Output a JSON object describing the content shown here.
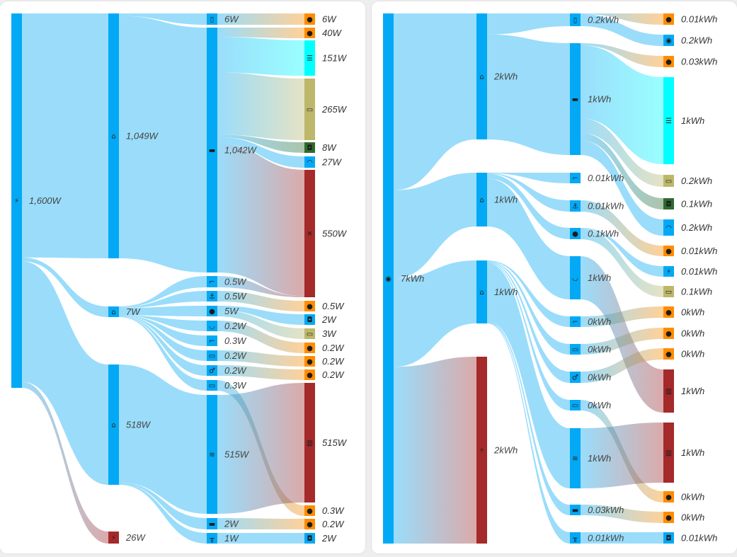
{
  "colors": {
    "blue": "#03a9f4",
    "cyan": "#00ffff",
    "khaki": "#bdb76b",
    "green": "#2e6b2e",
    "brown": "#a52a2a",
    "orange": "#ff8c00"
  },
  "panels": [
    {
      "name": "power-sankey",
      "nodes": [
        {
          "id": "power",
          "col": 0,
          "icon": "flash-icon",
          "color": "blue",
          "label": "1,600W"
        },
        {
          "id": "home1",
          "col": 1,
          "icon": "home-icon",
          "color": "blue",
          "label": "1,049W"
        },
        {
          "id": "home2",
          "col": 1,
          "icon": "home-icon",
          "color": "blue",
          "label": "7W"
        },
        {
          "id": "home3",
          "col": 1,
          "icon": "home-floor-icon",
          "color": "blue",
          "label": "518W"
        },
        {
          "id": "solar",
          "col": 1,
          "icon": "solar-power-icon",
          "color": "brown",
          "label": "26W"
        },
        {
          "id": "fridge",
          "col": 2,
          "icon": "fridge-icon",
          "color": "blue",
          "label": "6W"
        },
        {
          "id": "sofa",
          "col": 2,
          "icon": "sofa-icon",
          "color": "blue",
          "label": "1,042W"
        },
        {
          "id": "stairs1",
          "col": 2,
          "icon": "stairs-icon",
          "color": "blue",
          "label": "0.5W"
        },
        {
          "id": "anchor",
          "col": 2,
          "icon": "anchor-icon",
          "color": "blue",
          "label": "0.5W"
        },
        {
          "id": "palette",
          "col": 2,
          "icon": "palette-icon",
          "color": "blue",
          "label": "5W"
        },
        {
          "id": "bath",
          "col": 2,
          "icon": "bathtub-icon",
          "color": "blue",
          "label": "0.2W"
        },
        {
          "id": "stairs2",
          "col": 2,
          "icon": "stairs-icon",
          "color": "blue",
          "label": "0.3W"
        },
        {
          "id": "mon1",
          "col": 2,
          "icon": "monitor-icon",
          "color": "blue",
          "label": "0.2W"
        },
        {
          "id": "wc",
          "col": 2,
          "icon": "restroom-icon",
          "color": "blue",
          "label": "0.2W"
        },
        {
          "id": "mon2",
          "col": 2,
          "icon": "monitor-icon",
          "color": "blue",
          "label": "0.3W"
        },
        {
          "id": "shower",
          "col": 2,
          "icon": "shower-icon",
          "color": "blue",
          "label": "515W"
        },
        {
          "id": "bed",
          "col": 2,
          "icon": "bed-icon",
          "color": "blue",
          "label": "2W"
        },
        {
          "id": "desk",
          "col": 2,
          "icon": "desk-icon",
          "color": "blue",
          "label": "1W"
        },
        {
          "id": "b1",
          "col": 3,
          "icon": "lightbulb-icon",
          "color": "orange",
          "label": "6W"
        },
        {
          "id": "b2",
          "col": 3,
          "icon": "lightbulb-icon",
          "color": "orange",
          "label": "40W"
        },
        {
          "id": "server",
          "col": 3,
          "icon": "server-icon",
          "color": "cyan",
          "label": "151W"
        },
        {
          "id": "tv",
          "col": 3,
          "icon": "tv-icon",
          "color": "khaki",
          "label": "265W"
        },
        {
          "id": "spk1",
          "col": 3,
          "icon": "speaker-icon",
          "color": "green",
          "label": "8W"
        },
        {
          "id": "wifi",
          "col": 3,
          "icon": "wifi-icon",
          "color": "blue",
          "label": "27W"
        },
        {
          "id": "fan",
          "col": 3,
          "icon": "fan-icon",
          "color": "brown",
          "label": "550W"
        },
        {
          "id": "b3",
          "col": 3,
          "icon": "lightbulb-icon",
          "color": "orange",
          "label": "0.5W"
        },
        {
          "id": "spk2",
          "col": 3,
          "icon": "speaker-icon",
          "color": "blue",
          "label": "2W"
        },
        {
          "id": "laptop",
          "col": 3,
          "icon": "laptop-icon",
          "color": "khaki",
          "label": "3W"
        },
        {
          "id": "b4",
          "col": 3,
          "icon": "lightbulb-icon",
          "color": "orange",
          "label": "0.2W"
        },
        {
          "id": "b5",
          "col": 3,
          "icon": "lightbulb-icon",
          "color": "orange",
          "label": "0.2W"
        },
        {
          "id": "b6",
          "col": 3,
          "icon": "lightbulb-icon",
          "color": "orange",
          "label": "0.2W"
        },
        {
          "id": "heater",
          "col": 3,
          "icon": "radiator-icon",
          "color": "brown",
          "label": "515W"
        },
        {
          "id": "b7",
          "col": 3,
          "icon": "lightbulb-icon",
          "color": "orange",
          "label": "0.3W"
        },
        {
          "id": "b8",
          "col": 3,
          "icon": "lightbulb-icon",
          "color": "orange",
          "label": "0.2W"
        },
        {
          "id": "spk3",
          "col": 3,
          "icon": "speaker-icon",
          "color": "blue",
          "label": "2W"
        }
      ],
      "links": [
        [
          "power",
          "home1",
          1049
        ],
        [
          "power",
          "home2",
          7
        ],
        [
          "power",
          "home3",
          518
        ],
        [
          "power",
          "solar",
          26
        ],
        [
          "home1",
          "fridge",
          6
        ],
        [
          "home1",
          "sofa",
          1042
        ],
        [
          "home2",
          "stairs1",
          0.5
        ],
        [
          "home2",
          "anchor",
          0.5
        ],
        [
          "home2",
          "palette",
          5
        ],
        [
          "home2",
          "bath",
          0.2
        ],
        [
          "home2",
          "stairs2",
          0.3
        ],
        [
          "home2",
          "mon1",
          0.2
        ],
        [
          "home2",
          "wc",
          0.2
        ],
        [
          "home2",
          "mon2",
          0.3
        ],
        [
          "home3",
          "shower",
          515
        ],
        [
          "home3",
          "bed",
          2
        ],
        [
          "home3",
          "desk",
          1
        ],
        [
          "fridge",
          "b1",
          6
        ],
        [
          "sofa",
          "b2",
          40
        ],
        [
          "sofa",
          "server",
          151
        ],
        [
          "sofa",
          "tv",
          265
        ],
        [
          "sofa",
          "spk1",
          8
        ],
        [
          "sofa",
          "wifi",
          27
        ],
        [
          "sofa",
          "fan",
          550
        ],
        [
          "stairs1",
          "fan",
          0.5
        ],
        [
          "anchor",
          "b3",
          0.5
        ],
        [
          "palette",
          "spk2",
          2
        ],
        [
          "palette",
          "laptop",
          3
        ],
        [
          "bath",
          "b4",
          0.2
        ],
        [
          "mon1",
          "b5",
          0.2
        ],
        [
          "wc",
          "b6",
          0.2
        ],
        [
          "mon2",
          "b7",
          0.3
        ],
        [
          "shower",
          "heater",
          515
        ],
        [
          "bed",
          "b8",
          0.2
        ],
        [
          "desk",
          "spk3",
          2
        ]
      ]
    },
    {
      "name": "energy-sankey",
      "nodes": [
        {
          "id": "eye",
          "col": 0,
          "icon": "eye-icon",
          "color": "blue",
          "label": "7kWh"
        },
        {
          "id": "home1",
          "col": 1,
          "icon": "home-icon",
          "color": "blue",
          "label": "2kWh"
        },
        {
          "id": "home2",
          "col": 1,
          "icon": "home-icon",
          "color": "blue",
          "label": "1kWh"
        },
        {
          "id": "home3",
          "col": 1,
          "icon": "home-floor-icon",
          "color": "blue",
          "label": "1kWh"
        },
        {
          "id": "solar",
          "col": 1,
          "icon": "solar-power-icon",
          "color": "brown",
          "label": "2kWh"
        },
        {
          "id": "fridge",
          "col": 2,
          "icon": "fridge-icon",
          "color": "blue",
          "label": "0.2kWh"
        },
        {
          "id": "sofa",
          "col": 2,
          "icon": "sofa-icon",
          "color": "blue",
          "label": "1kWh"
        },
        {
          "id": "stairs1",
          "col": 2,
          "icon": "stairs-icon",
          "color": "blue",
          "label": "0.01kWh"
        },
        {
          "id": "anchor",
          "col": 2,
          "icon": "anchor-icon",
          "color": "blue",
          "label": "0.01kWh"
        },
        {
          "id": "palette",
          "col": 2,
          "icon": "palette-icon",
          "color": "blue",
          "label": "0.1kWh"
        },
        {
          "id": "bath",
          "col": 2,
          "icon": "bathtub-icon",
          "color": "blue",
          "label": "1kWh"
        },
        {
          "id": "stairs2",
          "col": 2,
          "icon": "stairs-icon",
          "color": "blue",
          "label": "0kWh"
        },
        {
          "id": "mon1",
          "col": 2,
          "icon": "monitor-icon",
          "color": "blue",
          "label": "0kWh"
        },
        {
          "id": "wc",
          "col": 2,
          "icon": "restroom-icon",
          "color": "blue",
          "label": "0kWh"
        },
        {
          "id": "mon2",
          "col": 2,
          "icon": "monitor-icon",
          "color": "blue",
          "label": "0kWh"
        },
        {
          "id": "shower",
          "col": 2,
          "icon": "shower-icon",
          "color": "blue",
          "label": "1kWh"
        },
        {
          "id": "bed",
          "col": 2,
          "icon": "bed-icon",
          "color": "blue",
          "label": "0.03kWh"
        },
        {
          "id": "desk",
          "col": 2,
          "icon": "desk-icon",
          "color": "blue",
          "label": "0.01kWh"
        },
        {
          "id": "b1",
          "col": 3,
          "icon": "lightbulb-icon",
          "color": "orange",
          "label": "0.01kWh"
        },
        {
          "id": "eye2",
          "col": 3,
          "icon": "eye-icon",
          "color": "blue",
          "label": "0.2kWh"
        },
        {
          "id": "b2",
          "col": 3,
          "icon": "lightbulb-icon",
          "color": "orange",
          "label": "0.03kWh"
        },
        {
          "id": "server",
          "col": 3,
          "icon": "server-icon",
          "color": "cyan",
          "label": "1kWh"
        },
        {
          "id": "tv",
          "col": 3,
          "icon": "tv-icon",
          "color": "khaki",
          "label": "0.2kWh"
        },
        {
          "id": "spk1",
          "col": 3,
          "icon": "speaker-icon",
          "color": "green",
          "label": "0.1kWh"
        },
        {
          "id": "wifi",
          "col": 3,
          "icon": "wifi-icon",
          "color": "blue",
          "label": "0.2kWh"
        },
        {
          "id": "b3",
          "col": 3,
          "icon": "lightbulb-icon",
          "color": "orange",
          "label": "0.01kWh"
        },
        {
          "id": "flash",
          "col": 3,
          "icon": "flash-icon",
          "color": "blue",
          "label": "0.01kWh"
        },
        {
          "id": "laptop",
          "col": 3,
          "icon": "laptop-icon",
          "color": "khaki",
          "label": "0.1kWh"
        },
        {
          "id": "b4",
          "col": 3,
          "icon": "lightbulb-icon",
          "color": "orange",
          "label": "0kWh"
        },
        {
          "id": "b5",
          "col": 3,
          "icon": "lightbulb-icon",
          "color": "orange",
          "label": "0kWh"
        },
        {
          "id": "b6",
          "col": 3,
          "icon": "lightbulb-icon",
          "color": "orange",
          "label": "0kWh"
        },
        {
          "id": "heater1",
          "col": 3,
          "icon": "radiator-icon",
          "color": "brown",
          "label": "1kWh"
        },
        {
          "id": "heater2",
          "col": 3,
          "icon": "radiator-icon",
          "color": "brown",
          "label": "1kWh"
        },
        {
          "id": "b7",
          "col": 3,
          "icon": "lightbulb-icon",
          "color": "orange",
          "label": "0kWh"
        },
        {
          "id": "b8",
          "col": 3,
          "icon": "lightbulb-icon",
          "color": "orange",
          "label": "0kWh"
        },
        {
          "id": "spk2",
          "col": 3,
          "icon": "speaker-icon",
          "color": "blue",
          "label": "0.01kWh"
        }
      ],
      "links": [
        [
          "eye",
          "home1",
          2
        ],
        [
          "eye",
          "home2",
          1
        ],
        [
          "eye",
          "home3",
          1
        ],
        [
          "eye",
          "solar",
          2
        ],
        [
          "home1",
          "fridge",
          0.2
        ],
        [
          "home1",
          "sofa",
          1
        ],
        [
          "home2",
          "stairs1",
          0.01
        ],
        [
          "home2",
          "anchor",
          0.01
        ],
        [
          "home2",
          "palette",
          0.1
        ],
        [
          "home2",
          "bath",
          1
        ],
        [
          "home3",
          "stairs2",
          0
        ],
        [
          "home3",
          "mon1",
          0
        ],
        [
          "home3",
          "wc",
          0
        ],
        [
          "home3",
          "mon2",
          0
        ],
        [
          "home3",
          "shower",
          1
        ],
        [
          "home3",
          "bed",
          0.03
        ],
        [
          "home3",
          "desk",
          0.01
        ],
        [
          "fridge",
          "b1",
          0.01
        ],
        [
          "fridge",
          "eye2",
          0.2
        ],
        [
          "sofa",
          "b2",
          0.03
        ],
        [
          "sofa",
          "server",
          1
        ],
        [
          "sofa",
          "tv",
          0.2
        ],
        [
          "sofa",
          "spk1",
          0.1
        ],
        [
          "sofa",
          "wifi",
          0.2
        ],
        [
          "anchor",
          "b3",
          0.01
        ],
        [
          "palette",
          "flash",
          0.01
        ],
        [
          "palette",
          "laptop",
          0.1
        ],
        [
          "bath",
          "heater1",
          1
        ],
        [
          "stairs2",
          "b4",
          0
        ],
        [
          "mon1",
          "b5",
          0
        ],
        [
          "wc",
          "b6",
          0
        ],
        [
          "mon2",
          "b7",
          0
        ],
        [
          "shower",
          "heater2",
          1
        ],
        [
          "bed",
          "b8",
          0
        ],
        [
          "desk",
          "spk2",
          0.01
        ]
      ]
    }
  ]
}
